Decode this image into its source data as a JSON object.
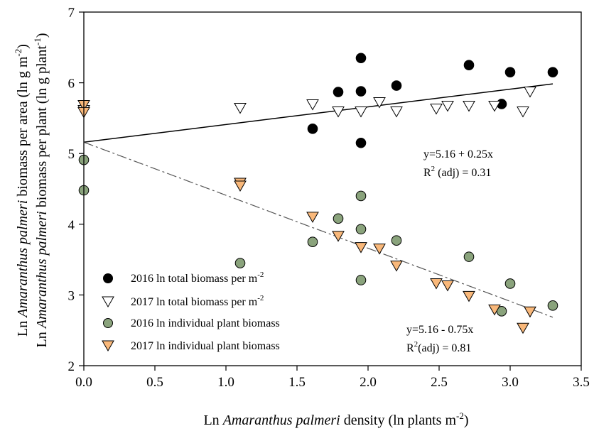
{
  "chart_data": {
    "type": "scatter",
    "xlabel": {
      "prefix": "Ln ",
      "italic": "Amaranthus palmeri",
      "suffix": " density (ln plants m",
      "sup": "-2",
      "end": ")"
    },
    "ylabel_lines": [
      {
        "prefix": "Ln ",
        "italic": "Amaranthus palmeri",
        "suffix": " biomass per area (ln g m",
        "sup": "-2",
        "end": ")"
      },
      {
        "prefix": "Ln ",
        "italic": "Amaranthus palmeri",
        "suffix": " biomass per plant (ln g plant",
        "sup": "-1",
        "end": ")"
      }
    ],
    "xlim": [
      0.0,
      3.5
    ],
    "ylim": [
      2,
      7
    ],
    "xticks": [
      "0.0",
      "0.5",
      "1.0",
      "1.5",
      "2.0",
      "2.5",
      "3.0",
      "3.5"
    ],
    "yticks": [
      "2",
      "3",
      "4",
      "5",
      "6",
      "7"
    ],
    "grid": false,
    "legend_position": "bottom-left",
    "series": [
      {
        "name": "2016 ln total biomass per m",
        "name_sup": "-2",
        "marker": "circle",
        "color": "#000000",
        "x": [
          1.61,
          1.79,
          1.95,
          1.95,
          1.95,
          2.2,
          2.71,
          2.94,
          3.0,
          3.3
        ],
        "y": [
          5.35,
          5.87,
          6.35,
          5.88,
          5.15,
          5.96,
          6.25,
          5.7,
          6.15,
          6.15
        ]
      },
      {
        "name": "2017 ln total biomass per m",
        "name_sup": "-2",
        "marker": "triangle-down",
        "color": "#ffffff",
        "x": [
          0.0,
          1.1,
          1.61,
          1.79,
          1.95,
          2.08,
          2.2,
          2.48,
          2.56,
          2.71,
          2.89,
          3.09,
          3.14
        ],
        "y": [
          5.62,
          5.65,
          5.7,
          5.6,
          5.6,
          5.73,
          5.6,
          5.64,
          5.68,
          5.68,
          5.68,
          5.6,
          5.88
        ]
      },
      {
        "name": "2016 ln individual plant biomass",
        "marker": "circle",
        "color": "#8aa37c",
        "x": [
          0.0,
          0.0,
          1.1,
          1.61,
          1.79,
          1.95,
          1.95,
          1.95,
          2.2,
          2.71,
          2.94,
          3.0,
          3.3
        ],
        "y": [
          4.91,
          4.48,
          3.45,
          3.75,
          4.08,
          4.4,
          3.93,
          3.21,
          3.77,
          3.54,
          2.77,
          3.16,
          2.85
        ]
      },
      {
        "name": "2017 ln individual plant biomass",
        "marker": "triangle-down",
        "color": "#f9b87a",
        "x": [
          0.0,
          0.0,
          1.1,
          1.1,
          1.61,
          1.79,
          1.95,
          2.08,
          2.2,
          2.48,
          2.56,
          2.71,
          2.89,
          3.09,
          3.14
        ],
        "y": [
          5.69,
          5.59,
          4.59,
          4.55,
          4.11,
          3.84,
          3.68,
          3.66,
          3.42,
          3.17,
          3.14,
          2.99,
          2.8,
          2.54,
          2.77
        ]
      }
    ],
    "fits": [
      {
        "x": [
          0.0,
          3.3
        ],
        "y": [
          5.16,
          5.985
        ],
        "style": "solid"
      },
      {
        "x": [
          0.0,
          3.3
        ],
        "y": [
          5.16,
          2.685
        ],
        "style": "dash-dot"
      }
    ],
    "annotations": {
      "upper_eq": "y=5.16 + 0.25x",
      "upper_r2_pre": "R",
      "upper_r2_sup": "2",
      "upper_r2_post": " (adj) = 0.31",
      "lower_eq": "y=5.16 - 0.75x",
      "lower_r2_pre": "R",
      "lower_r2_sup": "2",
      "lower_r2_post": "(adj) = 0.81"
    }
  }
}
